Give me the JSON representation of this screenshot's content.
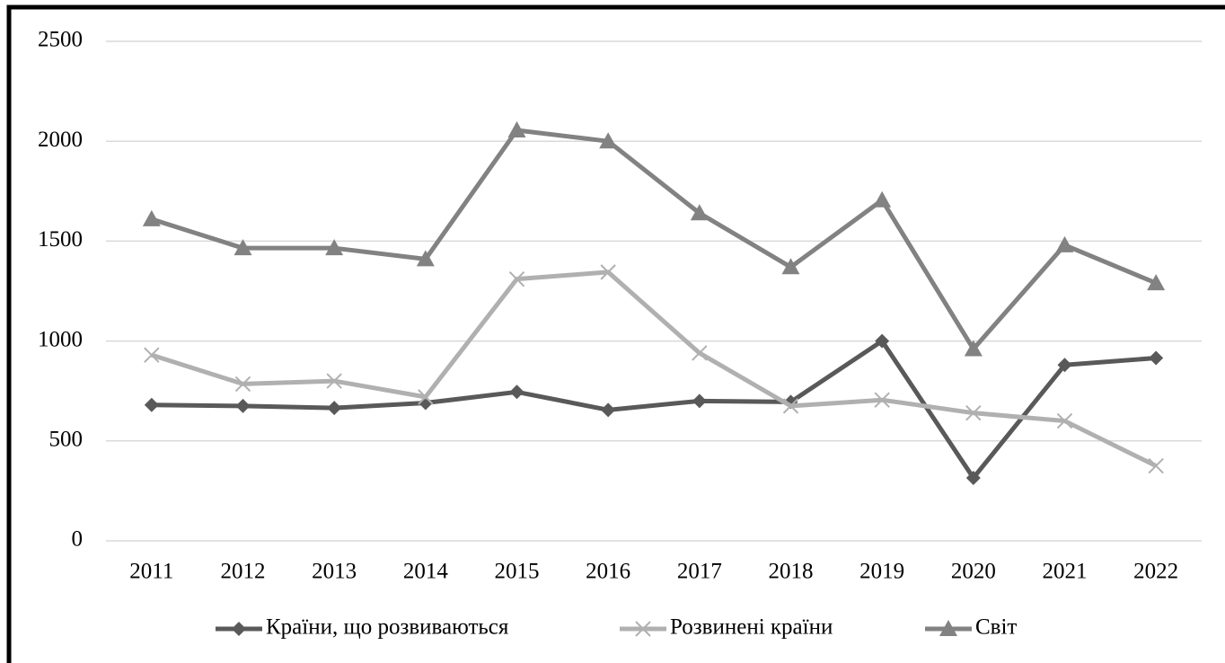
{
  "chart_data": {
    "type": "line",
    "categories": [
      "2011",
      "2012",
      "2013",
      "2014",
      "2015",
      "2016",
      "2017",
      "2018",
      "2019",
      "2020",
      "2021",
      "2022"
    ],
    "series": [
      {
        "name": "Країни, що розвиваються",
        "color": "#595959",
        "marker": "diamond",
        "values": [
          680,
          675,
          665,
          690,
          745,
          655,
          700,
          695,
          1000,
          315,
          880,
          915
        ]
      },
      {
        "name": "Розвинені країни",
        "color": "#b0b0b0",
        "marker": "x",
        "values": [
          930,
          785,
          800,
          720,
          1310,
          1345,
          940,
          675,
          705,
          640,
          600,
          375
        ]
      },
      {
        "name": "Світ",
        "color": "#828282",
        "marker": "triangle",
        "values": [
          1610,
          1465,
          1465,
          1410,
          2055,
          2000,
          1640,
          1370,
          1705,
          960,
          1480,
          1290
        ]
      }
    ],
    "ylim": [
      0,
      2500
    ],
    "yticks": [
      0,
      500,
      1000,
      1500,
      2000,
      2500
    ],
    "grid": true,
    "legend": "bottom"
  }
}
